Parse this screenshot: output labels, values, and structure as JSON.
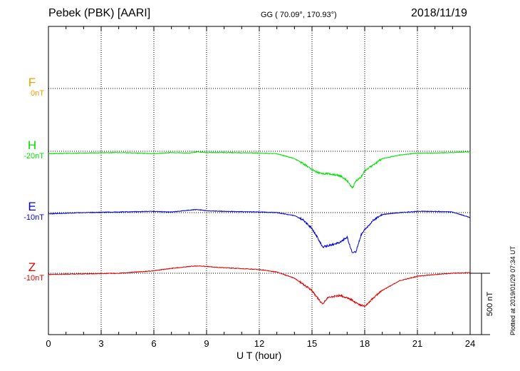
{
  "header": {
    "station": "Pebek (PBK)  [AARI]",
    "coords": "GG ( 70.09°, 170.93°)",
    "date": "2018/11/19"
  },
  "footer": {
    "plotted": "Plotted at 2019/01/29 07:34 UT",
    "scale_label": "500 nT"
  },
  "chart_data": {
    "type": "line",
    "xlabel": "U T (hour)",
    "xlim": [
      0,
      24
    ],
    "x_ticks": [
      "0",
      "3",
      "6",
      "9",
      "12",
      "15",
      "18",
      "21",
      "24"
    ],
    "grid": true,
    "scale_bar_nT": 500,
    "x_hours": [
      0,
      2,
      4,
      6,
      7,
      8,
      8.5,
      9,
      10,
      12,
      13,
      14,
      14.5,
      15,
      15.3,
      15.6,
      15.9,
      16.2,
      16.6,
      17,
      17.3,
      17.5,
      17.8,
      18,
      18.5,
      19,
      20,
      21,
      22,
      23,
      24
    ],
    "series": [
      {
        "name": "F",
        "baseline_label": "0nT",
        "color": "#f0a000",
        "values": []
      },
      {
        "name": "H",
        "baseline_label": "-20nT",
        "color": "#00e000",
        "values": [
          -20,
          -15,
          -10,
          -20,
          -10,
          -15,
          -5,
          -10,
          -10,
          -15,
          -20,
          -60,
          -100,
          -150,
          -170,
          -185,
          -180,
          -190,
          -200,
          -240,
          -300,
          -240,
          -210,
          -160,
          -110,
          -60,
          -30,
          -15,
          -15,
          -10,
          -5
        ]
      },
      {
        "name": "E",
        "baseline_label": "-10nT",
        "color": "#0000e0",
        "values": [
          -10,
          0,
          5,
          10,
          5,
          20,
          25,
          15,
          10,
          5,
          0,
          -25,
          -60,
          -130,
          -200,
          -280,
          -270,
          -260,
          -240,
          -200,
          -330,
          -320,
          -180,
          -140,
          -60,
          -15,
          0,
          10,
          10,
          5,
          -40
        ]
      },
      {
        "name": "Z",
        "baseline_label": "-10nT",
        "color": "#e00000",
        "values": [
          -10,
          -5,
          0,
          20,
          40,
          55,
          60,
          55,
          45,
          30,
          10,
          -40,
          -90,
          -140,
          -200,
          -250,
          -200,
          -190,
          -180,
          -200,
          -220,
          -240,
          -260,
          -270,
          -200,
          -140,
          -60,
          -25,
          -10,
          0,
          5
        ]
      }
    ]
  }
}
